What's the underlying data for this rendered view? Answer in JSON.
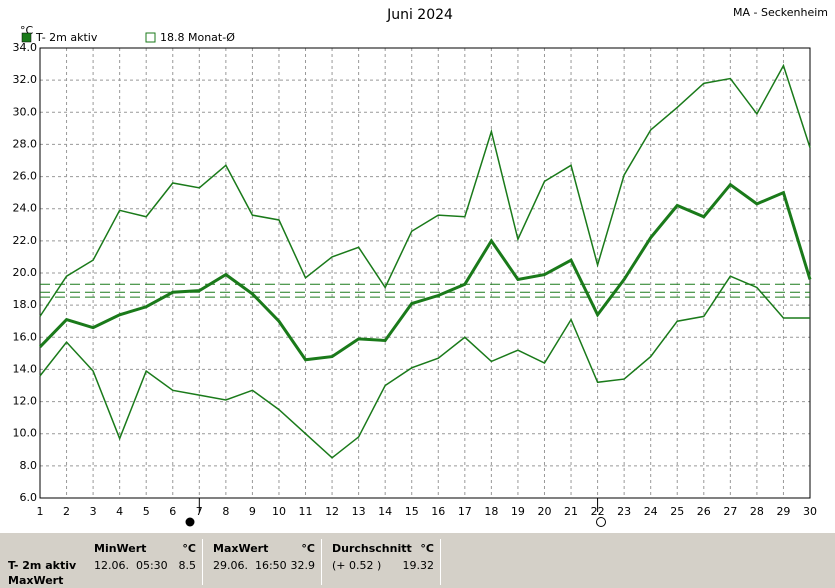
{
  "chart_data": {
    "type": "line",
    "title": "Juni 2024",
    "station": "MA - Seckenheim",
    "y_unit": "°C",
    "x": [
      1,
      2,
      3,
      4,
      5,
      6,
      7,
      8,
      9,
      10,
      11,
      12,
      13,
      14,
      15,
      16,
      17,
      18,
      19,
      20,
      21,
      22,
      23,
      24,
      25,
      26,
      27,
      28,
      29,
      30
    ],
    "xlim": [
      1,
      30
    ],
    "xticks": [
      1,
      2,
      3,
      4,
      5,
      6,
      7,
      8,
      9,
      10,
      11,
      12,
      13,
      14,
      15,
      16,
      17,
      18,
      19,
      20,
      21,
      22,
      23,
      24,
      25,
      26,
      27,
      28,
      29,
      30
    ],
    "ylim": [
      6,
      34
    ],
    "yticks": [
      {
        "value": 6,
        "label": "6.0"
      },
      {
        "value": 8,
        "label": "8.0"
      },
      {
        "value": 10,
        "label": "10.0"
      },
      {
        "value": 12,
        "label": "12.0"
      },
      {
        "value": 14,
        "label": "14.0"
      },
      {
        "value": 16,
        "label": "16.0"
      },
      {
        "value": 18,
        "label": "18.0"
      },
      {
        "value": 20,
        "label": "20.0"
      },
      {
        "value": 22,
        "label": "22.0"
      },
      {
        "value": 24,
        "label": "24.0"
      },
      {
        "value": 26,
        "label": "26.0"
      },
      {
        "value": 28,
        "label": "28.0"
      },
      {
        "value": 30,
        "label": "30.0"
      },
      {
        "value": 32,
        "label": "32.0"
      },
      {
        "value": 34,
        "label": "34.0"
      }
    ],
    "grid": true,
    "series": [
      {
        "name": "T- 2m aktiv",
        "color": "#1a7a1a",
        "width": 3,
        "values": [
          15.4,
          17.1,
          16.6,
          17.4,
          17.9,
          18.8,
          18.9,
          19.9,
          18.7,
          17.0,
          14.6,
          14.8,
          15.9,
          15.8,
          18.1,
          18.6,
          19.3,
          22.0,
          19.6,
          19.9,
          20.8,
          17.4,
          19.6,
          22.2,
          24.2,
          23.5,
          25.5,
          24.3,
          25.0,
          19.6
        ]
      },
      {
        "color": "#1a7a1a",
        "width": 1.5,
        "values": [
          17.3,
          19.8,
          20.8,
          23.9,
          23.5,
          25.6,
          25.3,
          26.7,
          23.6,
          23.3,
          19.7,
          21.0,
          21.6,
          19.1,
          22.6,
          23.6,
          23.5,
          28.8,
          22.1,
          25.7,
          26.7,
          20.5,
          26.1,
          28.9,
          30.3,
          31.8,
          32.1,
          29.9,
          32.9,
          27.8
        ]
      },
      {
        "color": "#1a7a1a",
        "width": 1.5,
        "values": [
          13.6,
          15.7,
          13.9,
          9.7,
          13.9,
          12.7,
          12.4,
          12.1,
          12.7,
          11.5,
          10.0,
          8.5,
          9.8,
          13.0,
          14.1,
          14.7,
          16.0,
          14.5,
          15.2,
          14.4,
          17.1,
          13.2,
          13.4,
          14.8,
          17.0,
          17.3,
          19.8,
          19.1,
          17.2,
          17.2
        ]
      }
    ],
    "monthly_mean": {
      "label": "18.8 Monat-Ø",
      "color": "#1a7a1a",
      "values": [
        19.3,
        18.8,
        18.5
      ]
    }
  },
  "stats": {
    "row_label": "T- 2m aktiv",
    "row_label2": "MaxWert",
    "blocks": [
      {
        "title": "MinWert",
        "unit": "°C",
        "info": "12.06.  05:30",
        "value": "8.5"
      },
      {
        "title": "MaxWert",
        "unit": "°C",
        "info": "29.06.  16:50",
        "value": "32.9"
      },
      {
        "title": "Durchschnitt",
        "unit": "°C",
        "info": "(+ 0.52 )",
        "value": "19.32"
      }
    ]
  }
}
